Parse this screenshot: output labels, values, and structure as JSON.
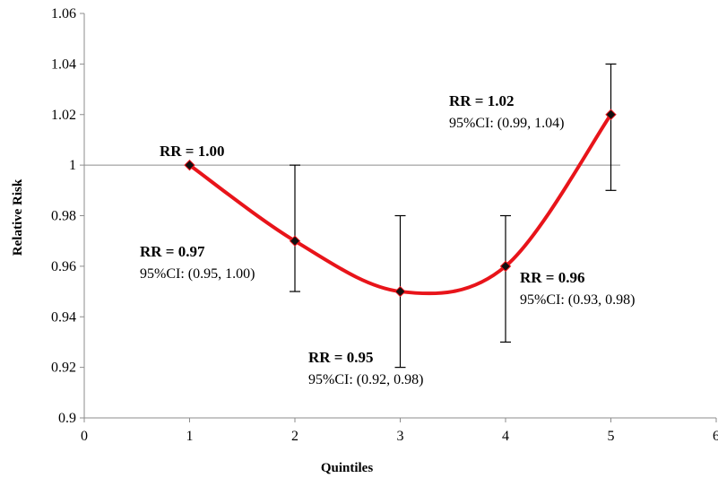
{
  "chart_data": {
    "type": "line",
    "title": "",
    "xlabel": "Quintiles",
    "ylabel": "Relative Risk",
    "xlim": [
      0,
      6
    ],
    "ylim": [
      0.9,
      1.06
    ],
    "x_ticks": [
      "0",
      "1",
      "2",
      "3",
      "4",
      "5",
      "6"
    ],
    "y_ticks": [
      "0.9",
      "0.92",
      "0.94",
      "0.96",
      "0.98",
      "1",
      "1.02",
      "1.04",
      "1.06"
    ],
    "reference_line": 1,
    "smooth": true,
    "line_color": "#e8141a",
    "marker": "diamond",
    "grid": false,
    "points": [
      {
        "x": 1,
        "y": 1.0,
        "lo": 1.0,
        "hi": 1.0,
        "rr_label": "RR = 1.00",
        "ci_label": ""
      },
      {
        "x": 2,
        "y": 0.97,
        "lo": 0.95,
        "hi": 1.0,
        "rr_label": "RR = 0.97",
        "ci_label": "95%CI: (0.95, 1.00)"
      },
      {
        "x": 3,
        "y": 0.95,
        "lo": 0.92,
        "hi": 0.98,
        "rr_label": "RR = 0.95",
        "ci_label": "95%CI: (0.92, 0.98)"
      },
      {
        "x": 4,
        "y": 0.96,
        "lo": 0.93,
        "hi": 0.98,
        "rr_label": "RR = 0.96",
        "ci_label": "95%CI: (0.93, 0.98)"
      },
      {
        "x": 5,
        "y": 1.02,
        "lo": 0.99,
        "hi": 1.04,
        "rr_label": "RR = 1.02",
        "ci_label": "95%CI: (0.99, 1.04)"
      }
    ]
  }
}
